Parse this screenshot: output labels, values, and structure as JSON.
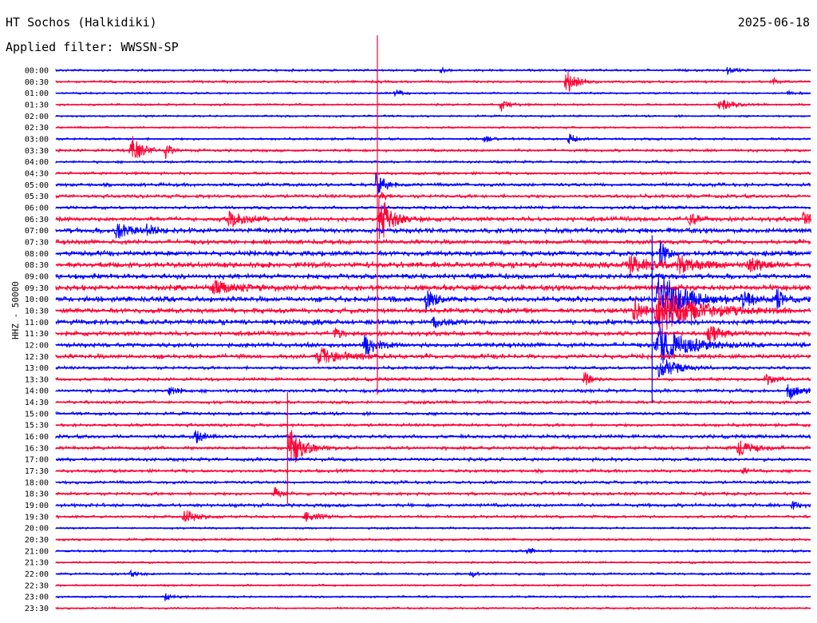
{
  "header": {
    "station": "HT Sochos (Halkidiki)",
    "date": "2025-06-18",
    "filter": "Applied filter: WWSSN-SP"
  },
  "colors": {
    "even_rows": "#0000ff",
    "odd_rows": "#ff0033",
    "background": "#ffffff"
  },
  "chart_data": {
    "type": "line",
    "title": "HT Sochos (Halkidiki)",
    "subtitle": "Applied filter: WWSSN-SP",
    "ylabel": "HHZ - 50000",
    "xlabel": "",
    "grid": false,
    "row_labels": [
      "00:00",
      "00:30",
      "01:00",
      "01:30",
      "02:00",
      "02:30",
      "03:00",
      "03:30",
      "04:00",
      "04:30",
      "05:00",
      "05:30",
      "06:00",
      "06:30",
      "07:00",
      "07:30",
      "08:00",
      "08:30",
      "09:00",
      "09:30",
      "10:00",
      "10:30",
      "11:00",
      "11:30",
      "12:00",
      "12:30",
      "13:00",
      "13:30",
      "14:00",
      "14:30",
      "15:00",
      "15:30",
      "16:00",
      "16:30",
      "17:00",
      "17:30",
      "18:00",
      "18:30",
      "19:00",
      "19:30",
      "20:00",
      "20:30",
      "21:00",
      "21:30",
      "22:00",
      "22:30",
      "23:00",
      "23:30"
    ],
    "noise_level": [
      1.2,
      1.2,
      1.0,
      1.1,
      1.0,
      1.0,
      1.2,
      1.4,
      1.3,
      1.4,
      1.8,
      1.8,
      1.6,
      2.2,
      2.4,
      2.2,
      2.4,
      2.6,
      2.4,
      2.6,
      2.6,
      2.4,
      2.4,
      2.2,
      2.2,
      2.2,
      1.6,
      1.6,
      1.8,
      1.6,
      1.6,
      1.6,
      1.8,
      1.8,
      1.8,
      1.6,
      1.6,
      1.6,
      1.8,
      1.4,
      1.0,
      1.2,
      1.2,
      1.0,
      1.2,
      1.0,
      1.0,
      1.0
    ],
    "events": [
      {
        "row": 0,
        "x": 0.51,
        "amp": 3,
        "w": 0.01
      },
      {
        "row": 0,
        "x": 0.89,
        "amp": 4,
        "w": 0.01
      },
      {
        "row": 1,
        "x": 0.676,
        "amp": 16,
        "w": 0.012
      },
      {
        "row": 1,
        "x": 0.95,
        "amp": 4,
        "w": 0.008
      },
      {
        "row": 2,
        "x": 0.45,
        "amp": 4,
        "w": 0.01
      },
      {
        "row": 2,
        "x": 0.97,
        "amp": 3,
        "w": 0.01
      },
      {
        "row": 3,
        "x": 0.59,
        "amp": 8,
        "w": 0.01
      },
      {
        "row": 3,
        "x": 0.88,
        "amp": 7,
        "w": 0.015
      },
      {
        "row": 6,
        "x": 0.567,
        "amp": 5,
        "w": 0.008
      },
      {
        "row": 6,
        "x": 0.68,
        "amp": 6,
        "w": 0.01
      },
      {
        "row": 7,
        "x": 0.1,
        "amp": 20,
        "w": 0.012
      },
      {
        "row": 7,
        "x": 0.145,
        "amp": 10,
        "w": 0.006
      },
      {
        "row": 10,
        "x": 0.424,
        "amp": 14,
        "w": 0.01
      },
      {
        "row": 11,
        "x": 0.43,
        "amp": 4,
        "w": 0.008
      },
      {
        "row": 13,
        "x": 0.429,
        "amp": 32,
        "w": 0.014
      },
      {
        "row": 13,
        "x": 0.23,
        "amp": 9,
        "w": 0.02
      },
      {
        "row": 13,
        "x": 0.84,
        "amp": 8,
        "w": 0.01
      },
      {
        "row": 13,
        "x": 0.99,
        "amp": 7,
        "w": 0.01
      },
      {
        "row": 14,
        "x": 0.08,
        "amp": 12,
        "w": 0.015
      },
      {
        "row": 14,
        "x": 0.12,
        "amp": 7,
        "w": 0.01
      },
      {
        "row": 16,
        "x": 0.8,
        "amp": 30,
        "w": 0.006
      },
      {
        "row": 17,
        "x": 0.76,
        "amp": 12,
        "w": 0.025
      },
      {
        "row": 17,
        "x": 0.825,
        "amp": 11,
        "w": 0.02
      },
      {
        "row": 17,
        "x": 0.92,
        "amp": 8,
        "w": 0.02
      },
      {
        "row": 19,
        "x": 0.21,
        "amp": 9,
        "w": 0.025
      },
      {
        "row": 20,
        "x": 0.49,
        "amp": 16,
        "w": 0.01
      },
      {
        "row": 20,
        "x": 0.8,
        "amp": 34,
        "w": 0.03
      },
      {
        "row": 20,
        "x": 0.91,
        "amp": 12,
        "w": 0.01
      },
      {
        "row": 20,
        "x": 0.955,
        "amp": 14,
        "w": 0.008
      },
      {
        "row": 21,
        "x": 0.765,
        "amp": 14,
        "w": 0.012
      },
      {
        "row": 21,
        "x": 0.8,
        "amp": 30,
        "w": 0.04
      },
      {
        "row": 22,
        "x": 0.5,
        "amp": 7,
        "w": 0.01
      },
      {
        "row": 23,
        "x": 0.37,
        "amp": 6,
        "w": 0.01
      },
      {
        "row": 23,
        "x": 0.865,
        "amp": 12,
        "w": 0.015
      },
      {
        "row": 24,
        "x": 0.41,
        "amp": 14,
        "w": 0.012
      },
      {
        "row": 24,
        "x": 0.8,
        "amp": 26,
        "w": 0.03
      },
      {
        "row": 25,
        "x": 0.35,
        "amp": 10,
        "w": 0.03
      },
      {
        "row": 26,
        "x": 0.8,
        "amp": 14,
        "w": 0.02
      },
      {
        "row": 27,
        "x": 0.7,
        "amp": 9,
        "w": 0.01
      },
      {
        "row": 27,
        "x": 0.94,
        "amp": 8,
        "w": 0.01
      },
      {
        "row": 28,
        "x": 0.97,
        "amp": 12,
        "w": 0.012
      },
      {
        "row": 28,
        "x": 0.15,
        "amp": 6,
        "w": 0.008
      },
      {
        "row": 32,
        "x": 0.185,
        "amp": 8,
        "w": 0.01
      },
      {
        "row": 33,
        "x": 0.31,
        "amp": 28,
        "w": 0.014
      },
      {
        "row": 33,
        "x": 0.905,
        "amp": 10,
        "w": 0.015
      },
      {
        "row": 35,
        "x": 0.91,
        "amp": 5,
        "w": 0.008
      },
      {
        "row": 37,
        "x": 0.29,
        "amp": 8,
        "w": 0.008
      },
      {
        "row": 38,
        "x": 0.975,
        "amp": 6,
        "w": 0.008
      },
      {
        "row": 39,
        "x": 0.17,
        "amp": 9,
        "w": 0.015
      },
      {
        "row": 39,
        "x": 0.33,
        "amp": 6,
        "w": 0.015
      },
      {
        "row": 42,
        "x": 0.625,
        "amp": 4,
        "w": 0.01
      },
      {
        "row": 44,
        "x": 0.1,
        "amp": 4,
        "w": 0.01
      },
      {
        "row": 44,
        "x": 0.55,
        "amp": 4,
        "w": 0.01
      },
      {
        "row": 46,
        "x": 0.145,
        "amp": 6,
        "w": 0.006
      }
    ],
    "spikes": [
      {
        "row": 13,
        "x": 0.426,
        "up": 230,
        "down": 220
      },
      {
        "row": 20,
        "x": 0.79,
        "up": 80,
        "down": 130
      },
      {
        "row": 33,
        "x": 0.307,
        "up": 70,
        "down": 70
      }
    ]
  }
}
